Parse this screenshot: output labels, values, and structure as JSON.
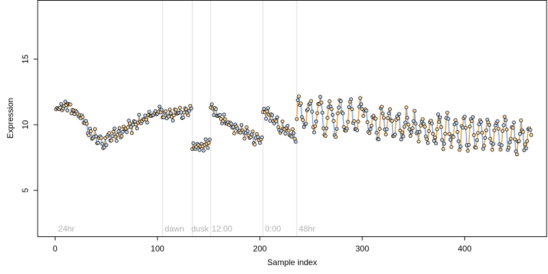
{
  "chart_data": {
    "type": "scatter",
    "xlabel": "Sample index",
    "ylabel": "Expression",
    "xlim": [
      -17,
      480
    ],
    "ylim": [
      1.5,
      19.5
    ],
    "xticks": [
      0,
      100,
      200,
      300,
      400
    ],
    "yticks": [
      5,
      10,
      15
    ],
    "grid": false,
    "vlines": [
      105,
      134,
      152,
      203,
      236
    ],
    "annotations": [
      {
        "text": "24hr",
        "x": 3
      },
      {
        "text": "dawn",
        "x": 107
      },
      {
        "text": "dusk",
        "x": 133
      },
      {
        "text": "12:00",
        "x": 153
      },
      {
        "text": "0:00",
        "x": 205
      },
      {
        "text": "48hr",
        "x": 238
      }
    ],
    "colors": {
      "point_fill": "#ffd9a0",
      "point_fill_dark": "#c8d8ec",
      "point_stroke": "#000000",
      "line_up": "#e8a040",
      "line_down": "#7fa7d9",
      "vline": "#dddddd",
      "annotation": "#b0b0b0"
    },
    "segments": [
      {
        "x0": 1,
        "x1": 15,
        "y0": 11.1,
        "y1": 11.5,
        "amp": 0.25,
        "period": 4,
        "noise": 0.25
      },
      {
        "x0": 16,
        "x1": 24,
        "y0": 11.0,
        "y1": 10.8,
        "amp": 0.3,
        "period": 4,
        "noise": 0.25
      },
      {
        "x0": 25,
        "x1": 32,
        "y0": 10.6,
        "y1": 9.8,
        "amp": 0.3,
        "period": 4,
        "noise": 0.25
      },
      {
        "x0": 33,
        "x1": 50,
        "y0": 9.4,
        "y1": 8.4,
        "amp": 0.5,
        "period": 5,
        "noise": 0.3
      },
      {
        "x0": 51,
        "x1": 105,
        "y0": 9.0,
        "y1": 11.1,
        "amp": 0.3,
        "period": 5,
        "noise": 0.3
      },
      {
        "x0": 106,
        "x1": 133,
        "y0": 10.7,
        "y1": 11.0,
        "amp": 0.25,
        "period": 5,
        "noise": 0.25
      },
      {
        "x0": 134,
        "x1": 151,
        "y0": 8.3,
        "y1": 8.5,
        "amp": 0.25,
        "period": 4,
        "noise": 0.2
      },
      {
        "x0": 152,
        "x1": 170,
        "y0": 11.4,
        "y1": 10.0,
        "amp": 0.25,
        "period": 4,
        "noise": 0.25
      },
      {
        "x0": 171,
        "x1": 202,
        "y0": 9.9,
        "y1": 8.8,
        "amp": 0.35,
        "period": 5,
        "noise": 0.3
      },
      {
        "x0": 203,
        "x1": 215,
        "y0": 11.0,
        "y1": 10.4,
        "amp": 0.3,
        "period": 4,
        "noise": 0.25
      },
      {
        "x0": 216,
        "x1": 235,
        "y0": 10.0,
        "y1": 9.0,
        "amp": 0.35,
        "period": 5,
        "noise": 0.3
      },
      {
        "x0": 236,
        "x1": 300,
        "y0": 10.8,
        "y1": 10.5,
        "amp": 1.2,
        "period": 10,
        "noise": 0.45
      },
      {
        "x0": 301,
        "x1": 465,
        "y0": 10.2,
        "y1": 9.0,
        "amp": 1.0,
        "period": 8,
        "noise": 0.5
      }
    ]
  }
}
